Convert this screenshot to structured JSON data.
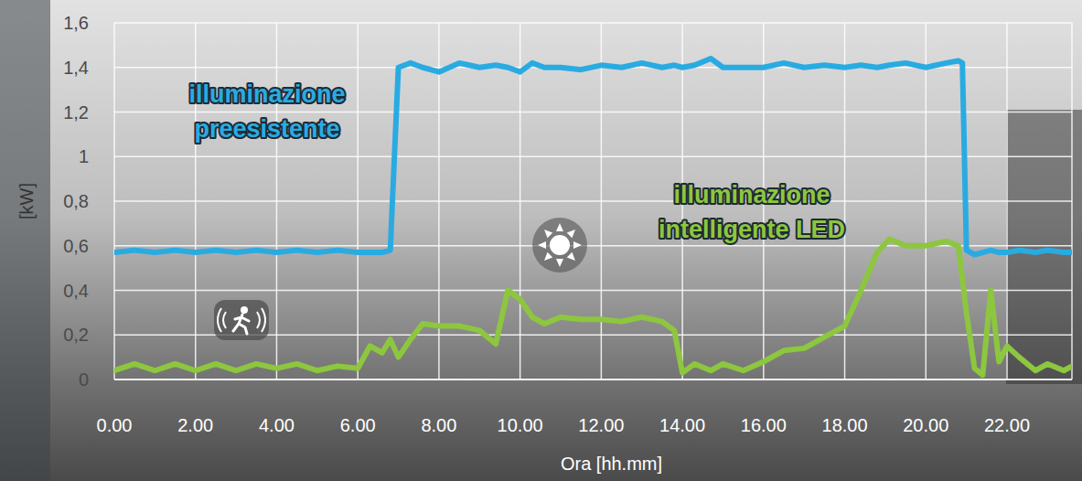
{
  "chart_data": {
    "type": "line",
    "xlabel": "Ora [hh.mm]",
    "ylabel": "[kW]",
    "x": [
      0,
      0.5,
      1,
      1.5,
      2,
      2.5,
      3,
      3.5,
      4,
      4.5,
      5,
      5.5,
      6,
      6.3,
      6.6,
      6.8,
      7,
      7.3,
      7.6,
      8,
      8.5,
      9,
      9.4,
      9.7,
      10,
      10.3,
      10.6,
      11,
      11.5,
      12,
      12.5,
      13,
      13.5,
      13.8,
      14,
      14.3,
      14.7,
      15,
      15.5,
      16,
      16.5,
      17,
      17.5,
      18,
      18.4,
      18.8,
      19.1,
      19.5,
      20,
      20.5,
      20.8,
      20.9,
      21,
      21.2,
      21.4,
      21.6,
      21.8,
      22,
      22.3,
      22.7,
      23,
      23.4,
      23.6
    ],
    "series": [
      {
        "name": "illuminazione preesistente",
        "color": "#29abe2",
        "values": [
          0.57,
          0.58,
          0.57,
          0.58,
          0.57,
          0.58,
          0.57,
          0.58,
          0.57,
          0.58,
          0.57,
          0.58,
          0.57,
          0.57,
          0.57,
          0.58,
          1.4,
          1.42,
          1.4,
          1.38,
          1.42,
          1.4,
          1.41,
          1.4,
          1.38,
          1.42,
          1.4,
          1.4,
          1.39,
          1.41,
          1.4,
          1.42,
          1.4,
          1.41,
          1.4,
          1.41,
          1.44,
          1.4,
          1.4,
          1.4,
          1.42,
          1.4,
          1.41,
          1.4,
          1.41,
          1.4,
          1.41,
          1.42,
          1.4,
          1.42,
          1.43,
          1.42,
          0.58,
          0.56,
          0.57,
          0.58,
          0.57,
          0.57,
          0.58,
          0.57,
          0.58,
          0.57,
          0.57
        ]
      },
      {
        "name": "illuminazione intelligente LED",
        "color": "#8dc63f",
        "values": [
          0.04,
          0.07,
          0.04,
          0.07,
          0.04,
          0.07,
          0.04,
          0.07,
          0.05,
          0.07,
          0.04,
          0.06,
          0.05,
          0.15,
          0.12,
          0.18,
          0.1,
          0.18,
          0.25,
          0.24,
          0.24,
          0.22,
          0.16,
          0.4,
          0.36,
          0.28,
          0.25,
          0.28,
          0.27,
          0.27,
          0.26,
          0.28,
          0.26,
          0.22,
          0.03,
          0.07,
          0.04,
          0.07,
          0.04,
          0.08,
          0.13,
          0.14,
          0.19,
          0.24,
          0.4,
          0.57,
          0.63,
          0.6,
          0.6,
          0.62,
          0.6,
          0.45,
          0.3,
          0.05,
          0.02,
          0.4,
          0.08,
          0.15,
          0.1,
          0.04,
          0.07,
          0.04,
          0.06
        ]
      }
    ],
    "xlim": [
      0,
      23.6
    ],
    "xticks": [
      {
        "value": 0,
        "label": "0.00"
      },
      {
        "value": 2,
        "label": "2.00"
      },
      {
        "value": 4,
        "label": "4.00"
      },
      {
        "value": 6,
        "label": "6.00"
      },
      {
        "value": 8,
        "label": "8.00"
      },
      {
        "value": 10,
        "label": "10.00"
      },
      {
        "value": 12,
        "label": "12.00"
      },
      {
        "value": 14,
        "label": "14.00"
      },
      {
        "value": 16,
        "label": "16.00"
      },
      {
        "value": 18,
        "label": "18.00"
      },
      {
        "value": 20,
        "label": "20.00"
      },
      {
        "value": 22,
        "label": "22.00"
      }
    ],
    "ylim": [
      0,
      1.6
    ],
    "yticks": [
      0,
      {
        "value": 0.2,
        "label": "0,2"
      },
      {
        "value": 0.4,
        "label": "0,4"
      },
      {
        "value": 0.6,
        "label": "0,6"
      },
      {
        "value": 0.8,
        "label": "0,8"
      },
      1,
      {
        "value": 1.2,
        "label": "1,2"
      },
      {
        "value": 1.4,
        "label": "1,4"
      },
      {
        "value": 1.6,
        "label": "1,6"
      }
    ],
    "grid": true
  }
}
